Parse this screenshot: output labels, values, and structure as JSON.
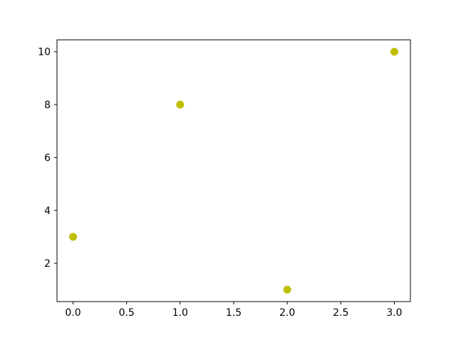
{
  "figure": {
    "background": "#ffffff"
  },
  "chart_data": {
    "type": "scatter",
    "title": "",
    "xlabel": "",
    "ylabel": "",
    "x": [
      0,
      1,
      2,
      3
    ],
    "y": [
      3,
      8,
      1,
      10
    ],
    "series": [
      {
        "name": "scatter-series-1",
        "x": [
          0,
          1,
          2,
          3
        ],
        "y": [
          3,
          8,
          1,
          10
        ]
      }
    ],
    "marker_color": "#bfbf00",
    "marker_diameter_px": 11,
    "xlim": [
      -0.15,
      3.15
    ],
    "ylim": [
      0.55,
      10.45
    ],
    "xticks": {
      "values": [
        0,
        0.5,
        1,
        1.5,
        2,
        2.5,
        3
      ],
      "labels": [
        "0.0",
        "0.5",
        "1.0",
        "1.5",
        "2.0",
        "2.5",
        "3.0"
      ]
    },
    "yticks": {
      "values": [
        2,
        4,
        6,
        8,
        10
      ],
      "labels": [
        "2",
        "4",
        "6",
        "8",
        "10"
      ]
    },
    "grid": false,
    "legend_position": "none",
    "spine_color": "#000000",
    "tick_color": "#000000",
    "tick_label_color": "#000000"
  }
}
